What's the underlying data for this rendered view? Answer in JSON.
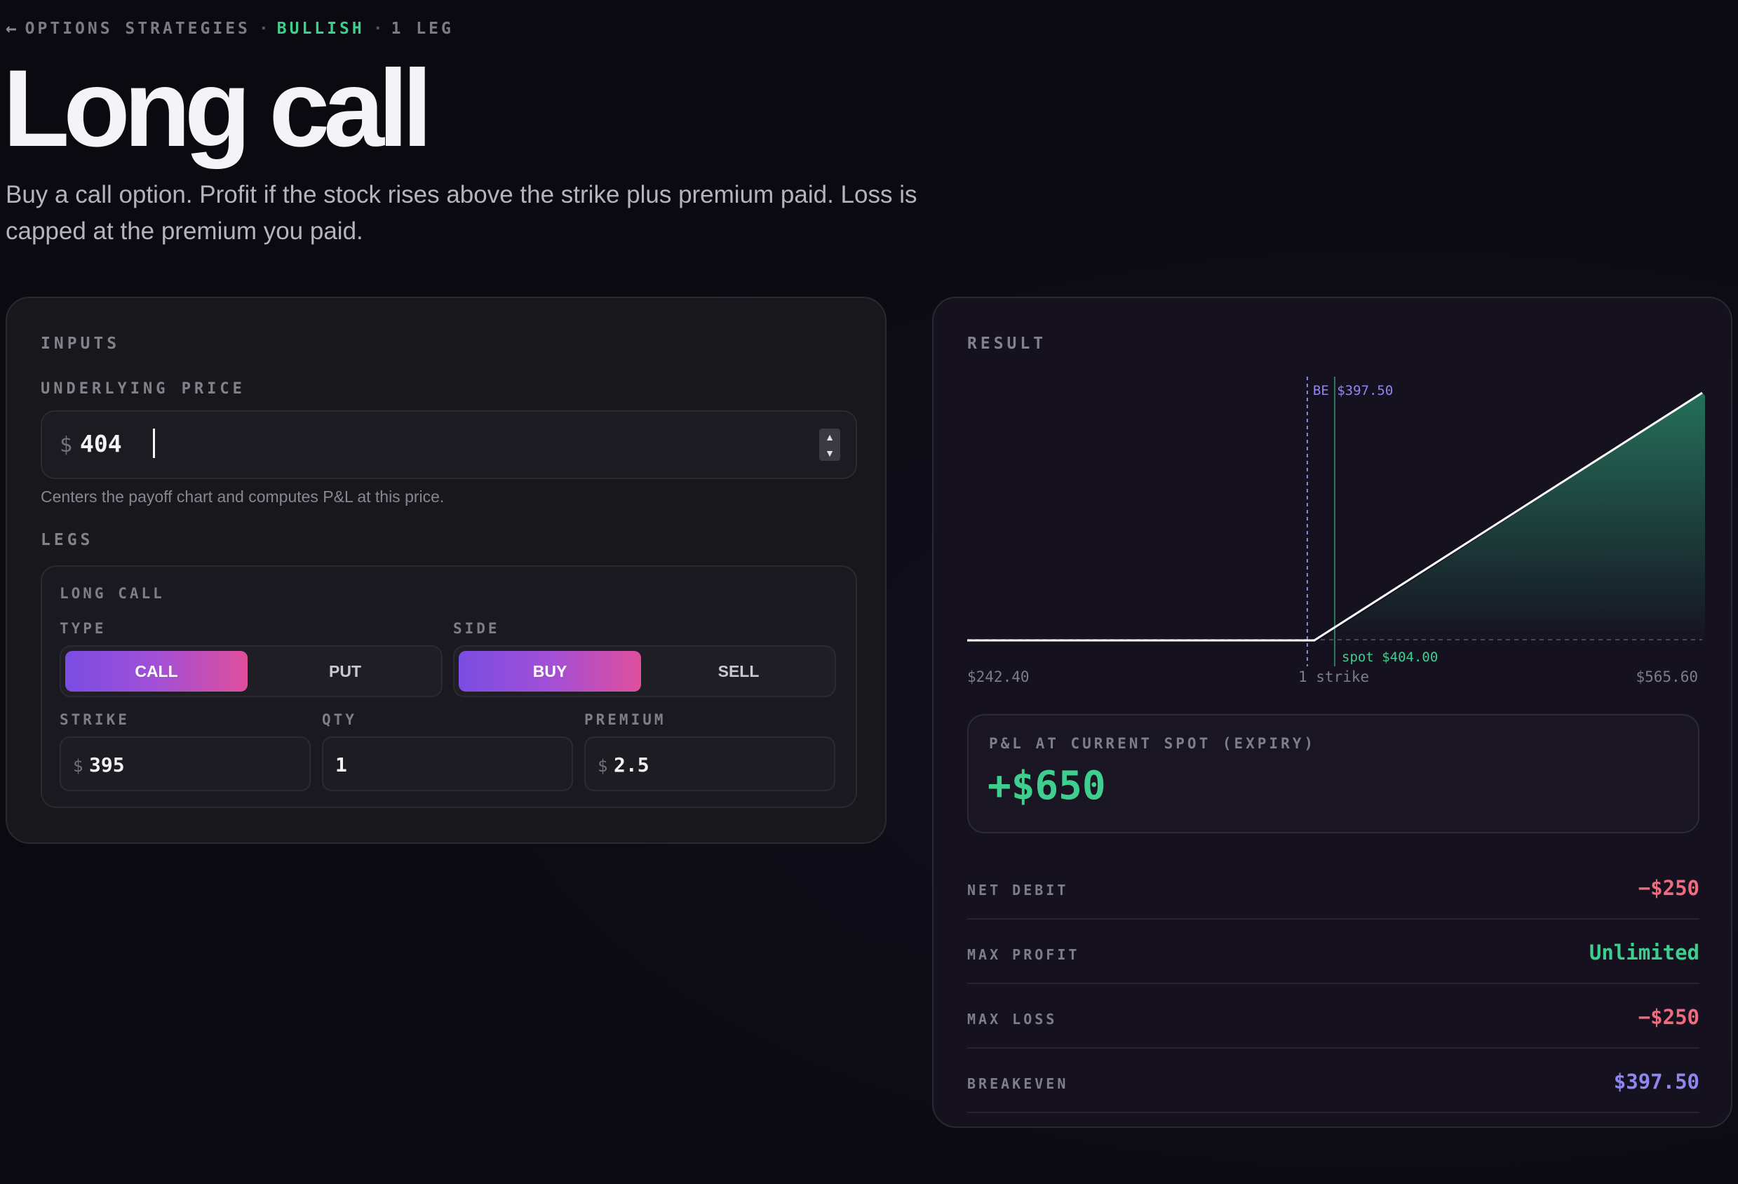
{
  "header": {
    "back_icon": "arrow-left-icon",
    "crumb_category": "OPTIONS STRATEGIES",
    "crumb_sentiment": "BULLISH",
    "crumb_legs": "1 LEG",
    "separator": "·",
    "title": "Long call",
    "subtitle": "Buy a call option. Profit if the stock rises above the strike plus premium paid. Loss is capped at the premium you paid."
  },
  "inputs": {
    "section_label": "INPUTS",
    "underlying_label": "UNDERLYING PRICE",
    "currency": "$",
    "underlying_value": "404",
    "underlying_helper": "Centers the payoff chart and computes P&L at this price.",
    "legs_label": "LEGS",
    "leg": {
      "name": "LONG CALL",
      "type_label": "TYPE",
      "type_options": [
        "CALL",
        "PUT"
      ],
      "type_selected": "CALL",
      "side_label": "SIDE",
      "side_options": [
        "BUY",
        "SELL"
      ],
      "side_selected": "BUY",
      "strike_label": "STRIKE",
      "strike_value": "395",
      "qty_label": "QTY",
      "qty_value": "1",
      "premium_label": "PREMIUM",
      "premium_value": "2.5"
    }
  },
  "result": {
    "section_label": "RESULT",
    "pl_label": "P&L AT CURRENT SPOT (EXPIRY)",
    "pl_value": "+$650",
    "stats": [
      {
        "key": "NET DEBIT",
        "value": "−$250",
        "color": "#f06b7e"
      },
      {
        "key": "MAX PROFIT",
        "value": "Unlimited",
        "color": "#3ecf8e"
      },
      {
        "key": "MAX LOSS",
        "value": "−$250",
        "color": "#f06b7e"
      },
      {
        "key": "BREAKEVEN",
        "value": "$397.50",
        "color": "#8f86f0"
      }
    ]
  },
  "chart_data": {
    "type": "line",
    "x_min_label": "$242.40",
    "x_mid_label": "1 strike",
    "x_max_label": "$565.60",
    "xlim": [
      242.4,
      565.6
    ],
    "breakeven_label": "BE $397.50",
    "breakeven": 397.5,
    "spot_label": "spot $404.00",
    "spot": 404.0,
    "strike": 395,
    "series": [
      {
        "x": [
          242.4,
          395,
          565.6
        ],
        "y": [
          -250,
          -250,
          16810
        ]
      }
    ],
    "colors": {
      "line": "#ffffff",
      "breakeven": "#8f86f0",
      "spot": "#3ecf8e",
      "fill": "#2a8f6e"
    }
  }
}
